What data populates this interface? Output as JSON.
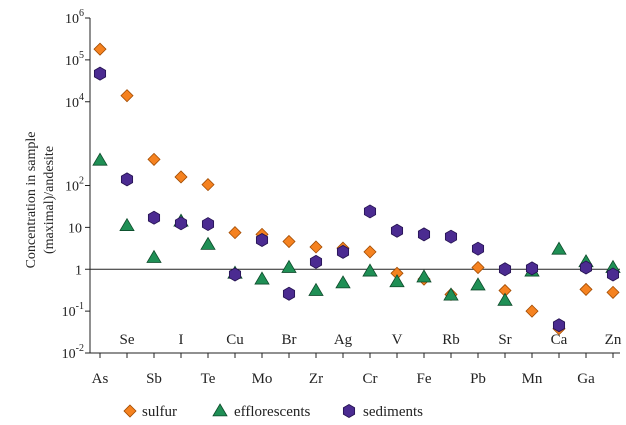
{
  "chart_data": {
    "type": "scatter",
    "ylabel_lines": [
      "Concentration in sample",
      "(maximal)/andesite"
    ],
    "yscale": "log",
    "ylim": [
      0.01,
      1000000
    ],
    "y_tick_labels": [
      {
        "value": 1000000,
        "base": "10",
        "exp": "6"
      },
      {
        "value": 100000,
        "base": "10",
        "exp": "5"
      },
      {
        "value": 10000,
        "base": "10",
        "exp": "4"
      },
      {
        "value": 100,
        "base": "10",
        "exp": "2"
      },
      {
        "value": 10,
        "base": "10",
        "exp": ""
      },
      {
        "value": 1,
        "base": "1",
        "exp": ""
      },
      {
        "value": 0.1,
        "base": "10",
        "exp": "-1"
      },
      {
        "value": 0.01,
        "base": "10",
        "exp": "-2"
      }
    ],
    "reference_line": 1,
    "categories": [
      "As",
      "Se",
      "Sb",
      "I",
      "Te",
      "Cu",
      "Mo",
      "Br",
      "Zr",
      "Ag",
      "Cr",
      "V",
      "Fe",
      "Rb",
      "Pb",
      "Sr",
      "Mn",
      "Ca",
      "Ga",
      "Zn"
    ],
    "category_label_rows": [
      "lower",
      "upper",
      "lower",
      "upper",
      "lower",
      "upper",
      "lower",
      "upper",
      "lower",
      "upper",
      "lower",
      "upper",
      "lower",
      "upper",
      "lower",
      "upper",
      "lower",
      "upper",
      "lower",
      "upper"
    ],
    "series": [
      {
        "name": "sulfur",
        "marker": "diamond",
        "color": "#f58220",
        "values": [
          180000,
          14000,
          420,
          160,
          105,
          7.5,
          6.8,
          4.6,
          3.4,
          3.2,
          2.6,
          0.8,
          0.58,
          0.25,
          1.1,
          0.31,
          0.1,
          0.038,
          0.33,
          0.28
        ]
      },
      {
        "name": "efflorescents",
        "marker": "triangle",
        "color": "#1f8f55",
        "values": [
          400,
          11,
          1.9,
          14,
          3.9,
          0.8,
          0.58,
          1.1,
          0.31,
          0.47,
          0.9,
          0.5,
          0.65,
          0.24,
          0.42,
          0.18,
          0.9,
          3.0,
          1.5,
          1.1
        ]
      },
      {
        "name": "sediments",
        "marker": "hexagon",
        "color": "#4b2b91",
        "values": [
          47000,
          140,
          17,
          12.5,
          12,
          0.75,
          5.0,
          0.26,
          1.5,
          2.6,
          24,
          8.3,
          6.8,
          6.0,
          3.1,
          1.0,
          1.05,
          0.046,
          1.1,
          0.75
        ]
      }
    ]
  }
}
